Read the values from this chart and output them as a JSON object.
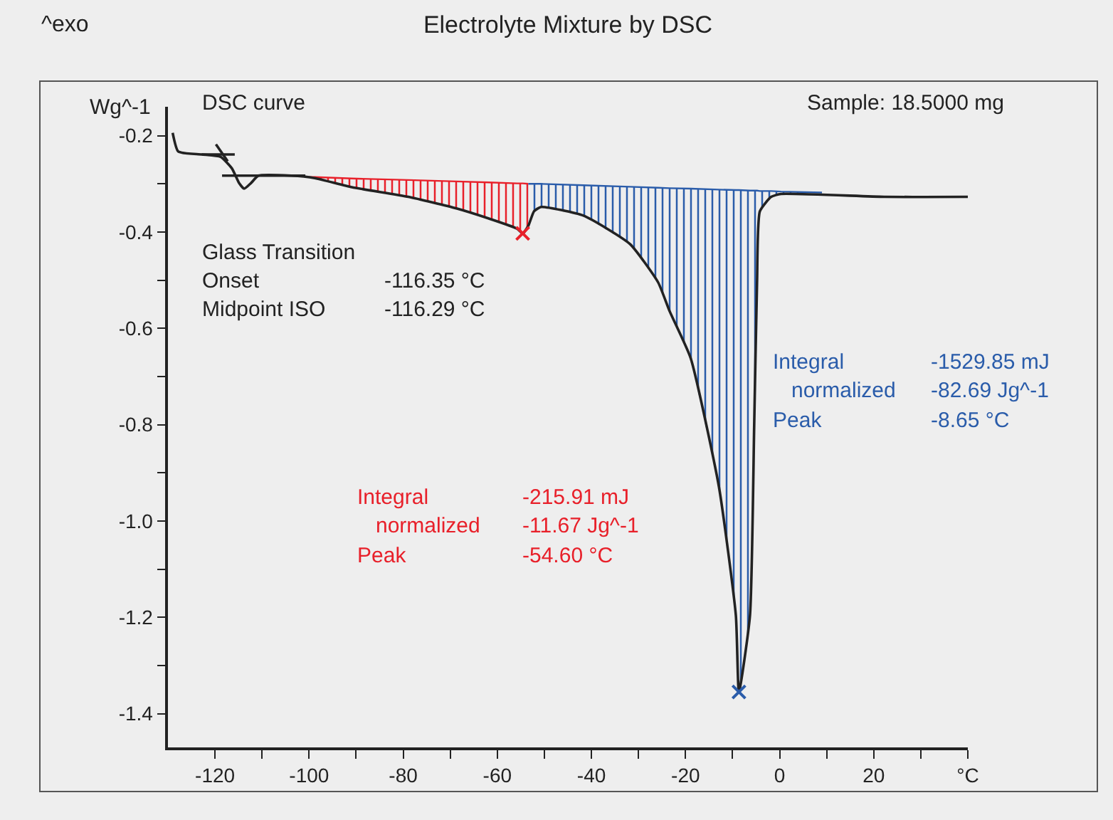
{
  "chart_data": {
    "type": "line",
    "title": "Electrolyte Mixture by DSC",
    "ylabel": "Wg^-1",
    "xlim": [
      -130,
      40
    ],
    "ylim": [
      -1.47,
      -0.14
    ],
    "xticks": [
      -120,
      {
        "value": -110,
        "label": null
      },
      -100,
      {
        "value": -90,
        "label": null
      },
      -80,
      {
        "value": -70,
        "label": null
      },
      -60,
      {
        "value": -50,
        "label": null
      },
      -40,
      {
        "value": -30,
        "label": null
      },
      -20,
      {
        "value": -10,
        "label": null
      },
      0,
      {
        "value": 10,
        "label": null
      },
      20,
      {
        "value": 30,
        "label": null
      },
      {
        "value": 40,
        "label": "°C"
      }
    ],
    "yticks": [
      {
        "value": -0.2,
        "label": "-0.2"
      },
      {
        "value": -0.3,
        "label": null
      },
      {
        "value": -0.4,
        "label": "-0.4"
      },
      {
        "value": -0.5,
        "label": null
      },
      {
        "value": -0.6,
        "label": "-0.6"
      },
      {
        "value": -0.7,
        "label": null
      },
      {
        "value": -0.8,
        "label": "-0.8"
      },
      {
        "value": -0.9,
        "label": null
      },
      {
        "value": -1.0,
        "label": "-1.0"
      },
      {
        "value": -1.1,
        "label": null
      },
      {
        "value": -1.2,
        "label": "-1.2"
      },
      {
        "value": -1.3,
        "label": null
      },
      {
        "value": -1.4,
        "label": "-1.4"
      }
    ],
    "grid": false,
    "line_style": "solid",
    "series": [
      {
        "color": "#e8202a",
        "x": [
          -100,
          -98.8,
          -90.9,
          -78.9,
          -68.7,
          -61.8,
          -55.8,
          -54.6,
          -53.4
        ],
        "values": [
          -0.286,
          -0.286,
          -0.289,
          -0.292,
          -0.295,
          -0.297,
          -0.299,
          -0.299,
          -0.3
        ],
        "lower": [
          -0.286,
          -0.288,
          -0.307,
          -0.327,
          -0.351,
          -0.372,
          -0.393,
          -0.403,
          -0.387
        ],
        "upper": [
          -0.286,
          -0.286,
          -0.289,
          -0.292,
          -0.295,
          -0.297,
          -0.299,
          -0.299,
          -0.3
        ]
      },
      {
        "color": "#2a5caa",
        "x": [
          -53.4,
          -52.2,
          -50.7,
          -41.7,
          -31.8,
          -25.8,
          -23.4,
          -18.9,
          -12.9,
          -9.3,
          -8.65,
          -6.3,
          -5.4,
          -4.8,
          -4.2,
          -1.8,
          0.3,
          9
        ],
        "values": [
          -0.3,
          -0.3,
          -0.3,
          -0.303,
          -0.306,
          -0.308,
          -0.309,
          -0.31,
          -0.312,
          -0.313,
          -0.313,
          -0.314,
          -0.314,
          -0.314,
          -0.315,
          -0.315,
          -0.316,
          -0.318
        ],
        "lower": [
          -0.387,
          -0.357,
          -0.348,
          -0.366,
          -0.425,
          -0.505,
          -0.564,
          -0.662,
          -0.929,
          -1.196,
          -1.355,
          -1.196,
          -0.8,
          -0.505,
          -0.357,
          -0.327,
          -0.321,
          -0.318
        ],
        "upper": [
          -0.3,
          -0.3,
          -0.3,
          -0.303,
          -0.306,
          -0.308,
          -0.309,
          -0.31,
          -0.312,
          -0.313,
          -0.313,
          -0.314,
          -0.314,
          -0.314,
          -0.315,
          -0.315,
          -0.316,
          -0.318
        ]
      },
      {
        "color": "#222222",
        "x": [
          -129,
          -127.8,
          -122.8,
          -118.8,
          -116.4,
          -114.9,
          -113.8,
          -112.3,
          -110.8,
          -103.8,
          -98.8,
          -90.9,
          -78.9,
          -68.7,
          -61.8,
          -55.8,
          -54.6,
          -53.4,
          -52.2,
          -50.7,
          -41.7,
          -31.8,
          -25.8,
          -23.4,
          -18.9,
          -12.9,
          -9.3,
          -8.65,
          -6.3,
          -5.4,
          -4.8,
          -4.2,
          -1.8,
          0.3,
          22.2,
          40
        ],
        "values": [
          -0.194,
          -0.233,
          -0.239,
          -0.244,
          -0.268,
          -0.298,
          -0.31,
          -0.298,
          -0.283,
          -0.283,
          -0.288,
          -0.307,
          -0.327,
          -0.351,
          -0.372,
          -0.393,
          -0.403,
          -0.387,
          -0.357,
          -0.348,
          -0.366,
          -0.425,
          -0.505,
          -0.564,
          -0.662,
          -0.929,
          -1.196,
          -1.355,
          -1.196,
          -0.8,
          -0.505,
          -0.357,
          -0.327,
          -0.321,
          -0.327,
          -0.327
        ]
      },
      {
        "color": "#222222",
        "x": [
          -118.5,
          -100.8
        ],
        "values": [
          -0.283,
          -0.283
        ]
      },
      {
        "color": "#222222",
        "x": [
          -122.8,
          -115.8
        ],
        "values": [
          -0.239,
          -0.239
        ]
      },
      {
        "color": "#222222",
        "x": [
          -119.8,
          -117.3
        ],
        "values": [
          -0.218,
          -0.253
        ]
      },
      {
        "type": "scatter",
        "marker": "cross",
        "color": "#e8202a",
        "x": [
          -54.6
        ],
        "values": [
          -0.403
        ]
      },
      {
        "type": "scatter",
        "marker": "cross",
        "color": "#2a5caa",
        "x": [
          -8.65
        ],
        "values": [
          -1.355
        ]
      }
    ],
    "annotations": [
      "^exo",
      "DSC curve",
      "Sample: 18.5000 mg",
      "Glass Transition",
      "Onset",
      "-116.35 °C",
      "Midpoint ISO",
      "-116.29 °C",
      "Integral",
      "-215.91 mJ",
      "normalized",
      "-11.67 Jg^-1",
      "Peak",
      "-54.60 °C",
      "Integral",
      "-1529.85 mJ",
      "normalized",
      "-82.69 Jg^-1",
      "Peak",
      "-8.65 °C"
    ]
  }
}
